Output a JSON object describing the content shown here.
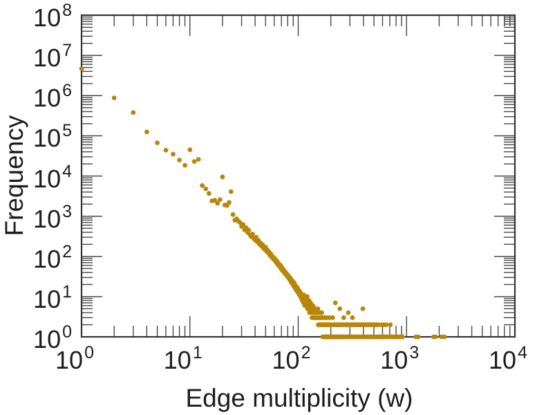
{
  "chart_data": {
    "type": "scatter",
    "title": "",
    "xlabel": "Edge multiplicity (w)",
    "ylabel": "Frequency",
    "x_scale": "log",
    "y_scale": "log",
    "xlim": [
      1,
      10000
    ],
    "ylim": [
      1,
      100000000
    ],
    "grid": false,
    "legend": "none",
    "tick_label_base": "10",
    "x_tick_exponents": [
      0,
      1,
      2,
      3,
      4
    ],
    "y_tick_exponents": [
      0,
      1,
      2,
      3,
      4,
      5,
      6,
      7,
      8
    ],
    "marker": {
      "shape": "circle",
      "color": "#B8860B",
      "radius_px": 3.4
    },
    "frame_color": "#333333",
    "tick_color": "#474747",
    "points": [
      [
        1,
        4700000
      ],
      [
        2,
        880000
      ],
      [
        3,
        380000
      ],
      [
        4,
        125000
      ],
      [
        5,
        67000
      ],
      [
        6,
        44000
      ],
      [
        7,
        35000
      ],
      [
        8,
        25000
      ],
      [
        9,
        18500
      ],
      [
        10,
        45000
      ],
      [
        11,
        23000
      ],
      [
        12,
        26000
      ],
      [
        13,
        5800
      ],
      [
        14,
        4800
      ],
      [
        15,
        3700
      ],
      [
        16,
        2400
      ],
      [
        17,
        2500
      ],
      [
        18,
        2100
      ],
      [
        19,
        2600
      ],
      [
        20,
        9500
      ],
      [
        21,
        1900
      ],
      [
        22,
        1850
      ],
      [
        23,
        2200
      ],
      [
        24,
        4100
      ],
      [
        25,
        1100
      ],
      [
        26,
        800
      ],
      [
        27,
        860
      ],
      [
        28,
        760
      ],
      [
        29,
        700
      ],
      [
        30,
        560
      ],
      [
        31,
        620
      ],
      [
        32,
        460
      ],
      [
        33,
        520
      ],
      [
        34,
        400
      ],
      [
        35,
        450
      ],
      [
        36,
        340
      ],
      [
        37,
        310
      ],
      [
        38,
        360
      ],
      [
        39,
        280
      ],
      [
        40,
        255
      ],
      [
        41,
        300
      ],
      [
        42,
        230
      ],
      [
        43,
        250
      ],
      [
        44,
        200
      ],
      [
        45,
        215
      ],
      [
        46,
        180
      ],
      [
        47,
        195
      ],
      [
        48,
        160
      ],
      [
        49,
        150
      ],
      [
        50,
        170
      ],
      [
        51,
        135
      ],
      [
        52,
        145
      ],
      [
        53,
        120
      ],
      [
        54,
        128
      ],
      [
        55,
        105
      ],
      [
        56,
        115
      ],
      [
        57,
        95
      ],
      [
        58,
        100
      ],
      [
        59,
        86
      ],
      [
        60,
        92
      ],
      [
        61,
        78
      ],
      [
        62,
        83
      ],
      [
        63,
        70
      ],
      [
        64,
        75
      ],
      [
        65,
        62
      ],
      [
        66,
        67
      ],
      [
        67,
        58
      ],
      [
        68,
        54
      ],
      [
        69,
        60
      ],
      [
        70,
        48
      ],
      [
        71,
        52
      ],
      [
        72,
        44
      ],
      [
        73,
        47
      ],
      [
        74,
        40
      ],
      [
        75,
        43
      ],
      [
        76,
        37
      ],
      [
        77,
        39
      ],
      [
        78,
        34
      ],
      [
        79,
        36
      ],
      [
        80,
        31
      ],
      [
        81,
        33
      ],
      [
        82,
        29
      ],
      [
        83,
        27
      ],
      [
        84,
        30
      ],
      [
        85,
        25
      ],
      [
        86,
        23
      ],
      [
        87,
        26
      ],
      [
        88,
        21
      ],
      [
        89,
        24
      ],
      [
        90,
        20
      ],
      [
        91,
        18
      ],
      [
        92,
        22
      ],
      [
        93,
        17
      ],
      [
        94,
        19
      ],
      [
        95,
        15
      ],
      [
        96,
        16
      ],
      [
        97,
        14
      ],
      [
        98,
        17
      ],
      [
        99,
        13
      ],
      [
        100,
        15
      ],
      [
        101,
        12
      ],
      [
        102,
        14
      ],
      [
        103,
        11
      ],
      [
        104,
        13
      ],
      [
        105,
        10
      ],
      [
        106,
        12
      ],
      [
        107,
        9
      ],
      [
        108,
        11
      ],
      [
        109,
        8
      ],
      [
        110,
        10
      ],
      [
        111,
        9
      ],
      [
        112,
        7
      ],
      [
        113,
        11
      ],
      [
        114,
        8
      ],
      [
        115,
        6
      ],
      [
        116,
        9
      ],
      [
        117,
        7
      ],
      [
        118,
        8
      ],
      [
        119,
        6
      ],
      [
        120,
        7
      ],
      [
        121,
        10
      ],
      [
        122,
        5
      ],
      [
        123,
        7
      ],
      [
        124,
        6
      ],
      [
        125,
        5
      ],
      [
        126,
        8
      ],
      [
        127,
        4
      ],
      [
        128,
        6
      ],
      [
        129,
        5
      ],
      [
        130,
        7
      ],
      [
        131,
        4
      ],
      [
        132,
        5
      ],
      [
        133,
        6
      ],
      [
        134,
        3
      ],
      [
        135,
        5
      ],
      [
        136,
        4
      ],
      [
        137,
        6
      ],
      [
        138,
        3
      ],
      [
        139,
        4
      ],
      [
        140,
        5
      ],
      [
        141,
        3
      ],
      [
        142,
        4
      ],
      [
        143,
        3
      ],
      [
        144,
        5
      ],
      [
        145,
        3
      ],
      [
        146,
        4
      ],
      [
        147,
        3
      ],
      [
        148,
        3
      ],
      [
        149,
        4
      ],
      [
        150,
        3
      ],
      [
        151,
        3
      ],
      [
        152,
        5
      ],
      [
        153,
        2
      ],
      [
        154,
        3
      ],
      [
        155,
        4
      ],
      [
        156,
        2
      ],
      [
        157,
        3
      ],
      [
        158,
        2
      ],
      [
        159,
        4
      ],
      [
        160,
        3
      ],
      [
        161,
        2
      ],
      [
        162,
        3
      ],
      [
        163,
        2
      ],
      [
        164,
        2
      ],
      [
        165,
        4
      ],
      [
        166,
        2
      ],
      [
        167,
        3
      ],
      [
        168,
        1
      ],
      [
        169,
        2
      ],
      [
        170,
        3
      ],
      [
        171,
        1
      ],
      [
        172,
        2
      ],
      [
        173,
        1
      ],
      [
        174,
        2
      ],
      [
        175,
        1
      ],
      [
        176,
        3
      ],
      [
        177,
        1
      ],
      [
        178,
        2
      ],
      [
        179,
        1
      ],
      [
        180,
        2
      ],
      [
        181,
        1
      ],
      [
        182,
        3
      ],
      [
        183,
        1
      ],
      [
        184,
        2
      ],
      [
        185,
        1
      ],
      [
        186,
        2
      ],
      [
        187,
        1
      ],
      [
        188,
        1
      ],
      [
        189,
        2
      ],
      [
        190,
        1
      ],
      [
        191,
        2
      ],
      [
        192,
        1
      ],
      [
        193,
        3
      ],
      [
        194,
        1
      ],
      [
        195,
        2
      ],
      [
        196,
        1
      ],
      [
        197,
        1
      ],
      [
        198,
        2
      ],
      [
        199,
        1
      ],
      [
        200,
        2
      ],
      [
        202,
        1
      ],
      [
        204,
        2
      ],
      [
        206,
        1
      ],
      [
        208,
        3
      ],
      [
        210,
        1
      ],
      [
        212,
        2
      ],
      [
        214,
        1
      ],
      [
        216,
        2
      ],
      [
        218,
        1
      ],
      [
        220,
        7
      ],
      [
        222,
        1
      ],
      [
        224,
        2
      ],
      [
        226,
        1
      ],
      [
        228,
        2
      ],
      [
        230,
        1
      ],
      [
        232,
        2
      ],
      [
        234,
        1
      ],
      [
        236,
        2
      ],
      [
        238,
        1
      ],
      [
        240,
        2
      ],
      [
        242,
        5
      ],
      [
        244,
        1
      ],
      [
        246,
        2
      ],
      [
        248,
        1
      ],
      [
        250,
        2
      ],
      [
        252,
        1
      ],
      [
        254,
        2
      ],
      [
        256,
        1
      ],
      [
        258,
        2
      ],
      [
        260,
        1
      ],
      [
        263,
        3
      ],
      [
        266,
        1
      ],
      [
        269,
        2
      ],
      [
        272,
        1
      ],
      [
        275,
        2
      ],
      [
        278,
        1
      ],
      [
        281,
        2
      ],
      [
        284,
        1
      ],
      [
        287,
        2
      ],
      [
        290,
        4
      ],
      [
        293,
        1
      ],
      [
        296,
        2
      ],
      [
        299,
        1
      ],
      [
        302,
        2
      ],
      [
        305,
        1
      ],
      [
        308,
        2
      ],
      [
        311,
        1
      ],
      [
        314,
        2
      ],
      [
        317,
        3
      ],
      [
        320,
        1
      ],
      [
        324,
        2
      ],
      [
        328,
        1
      ],
      [
        332,
        2
      ],
      [
        336,
        1
      ],
      [
        340,
        2
      ],
      [
        344,
        1
      ],
      [
        348,
        2
      ],
      [
        352,
        1
      ],
      [
        356,
        2
      ],
      [
        360,
        1
      ],
      [
        364,
        2
      ],
      [
        368,
        1
      ],
      [
        372,
        2
      ],
      [
        376,
        1
      ],
      [
        380,
        2
      ],
      [
        384,
        1
      ],
      [
        388,
        2
      ],
      [
        392,
        1
      ],
      [
        395,
        5
      ],
      [
        398,
        2
      ],
      [
        402,
        1
      ],
      [
        406,
        2
      ],
      [
        410,
        1
      ],
      [
        415,
        2
      ],
      [
        420,
        1
      ],
      [
        425,
        2
      ],
      [
        430,
        1
      ],
      [
        435,
        2
      ],
      [
        440,
        1
      ],
      [
        446,
        2
      ],
      [
        452,
        1
      ],
      [
        458,
        2
      ],
      [
        464,
        1
      ],
      [
        470,
        2
      ],
      [
        476,
        1
      ],
      [
        482,
        2
      ],
      [
        488,
        1
      ],
      [
        494,
        2
      ],
      [
        500,
        1
      ],
      [
        507,
        2
      ],
      [
        514,
        1
      ],
      [
        521,
        2
      ],
      [
        528,
        1
      ],
      [
        535,
        2
      ],
      [
        542,
        1
      ],
      [
        550,
        2
      ],
      [
        558,
        1
      ],
      [
        566,
        1
      ],
      [
        575,
        1
      ],
      [
        584,
        1
      ],
      [
        590,
        2
      ],
      [
        594,
        1
      ],
      [
        604,
        1
      ],
      [
        615,
        1
      ],
      [
        620,
        2
      ],
      [
        626,
        1
      ],
      [
        638,
        1
      ],
      [
        650,
        2
      ],
      [
        663,
        1
      ],
      [
        676,
        1
      ],
      [
        690,
        1
      ],
      [
        705,
        1
      ],
      [
        710,
        2
      ],
      [
        720,
        1
      ],
      [
        736,
        1
      ],
      [
        752,
        1
      ],
      [
        770,
        1
      ],
      [
        790,
        1
      ],
      [
        812,
        1
      ],
      [
        836,
        1
      ],
      [
        862,
        1
      ],
      [
        890,
        1
      ],
      [
        920,
        1
      ],
      [
        1220,
        1
      ],
      [
        1280,
        1
      ],
      [
        1780,
        1
      ],
      [
        1850,
        1
      ],
      [
        2100,
        1
      ],
      [
        2240,
        1
      ]
    ]
  }
}
